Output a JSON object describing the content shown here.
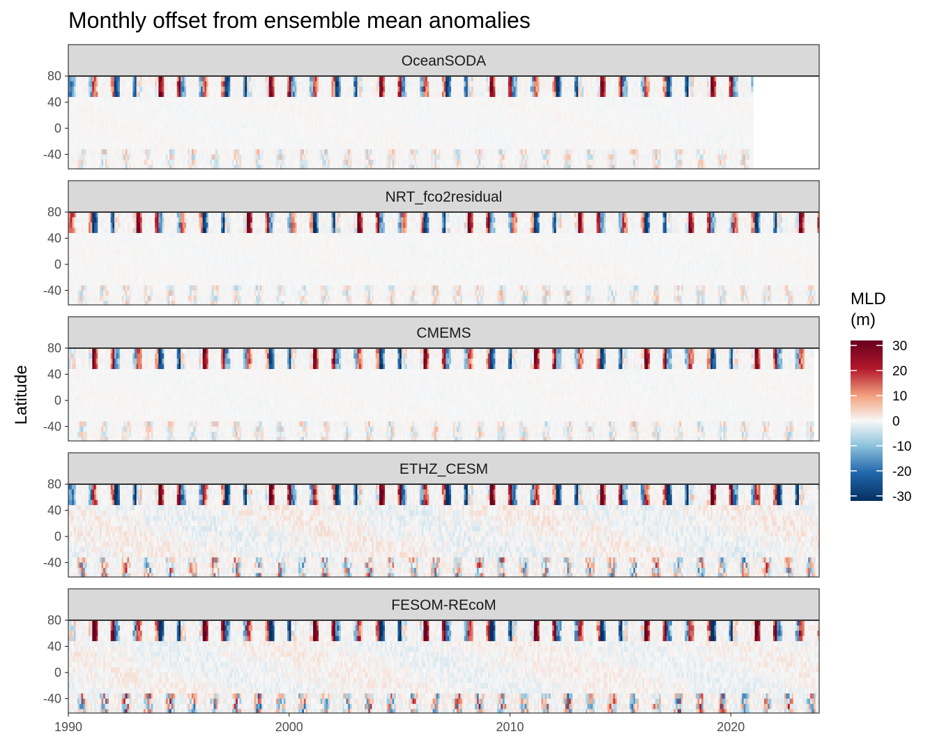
{
  "chart_data": {
    "type": "heatmap",
    "title": "Monthly offset from ensemble mean anomalies",
    "xlabel": "",
    "ylabel": "Latitude",
    "x_ticks": [
      1990,
      2000,
      2010,
      2020
    ],
    "y_ticks": [
      -40,
      0,
      40,
      80
    ],
    "xlim": [
      1990,
      2024
    ],
    "ylim": [
      -62,
      80
    ],
    "grid": false,
    "legend": {
      "title_line1": "MLD",
      "title_line2": "(m)",
      "placement": "right",
      "range": [
        -32,
        32
      ],
      "ticks": [
        30,
        20,
        10,
        0,
        -10,
        -20,
        -30
      ],
      "tick_labels": [
        "30",
        "20",
        "10",
        "0",
        "-10",
        "-20",
        "-30"
      ],
      "colors": {
        "low": "#053061",
        "mid_low": "#2166ac",
        "light_low": "#92c5de",
        "mid": "#f7f7f7",
        "light_high": "#f4a582",
        "mid_high": "#b2182b",
        "high": "#67001f"
      }
    },
    "panels": [
      {
        "name": "OceanSODA",
        "x_end": 2021,
        "intensity": 0.8,
        "tropics": 0.05,
        "south": 0.35,
        "seed": 11
      },
      {
        "name": "NRT_fco2residual",
        "x_end": 2024,
        "intensity": 0.8,
        "tropics": 0.05,
        "south": 0.35,
        "seed": 23
      },
      {
        "name": "CMEMS",
        "x_end": 2023.7,
        "intensity": 0.8,
        "tropics": 0.05,
        "south": 0.35,
        "seed": 37
      },
      {
        "name": "ETHZ_CESM",
        "x_end": 2024,
        "intensity": 1.0,
        "tropics": 0.25,
        "south": 0.85,
        "seed": 51
      },
      {
        "name": "FESOM-REcoM",
        "x_end": 2024,
        "intensity": 1.0,
        "tropics": 0.2,
        "south": 1.0,
        "seed": 67
      }
    ]
  }
}
